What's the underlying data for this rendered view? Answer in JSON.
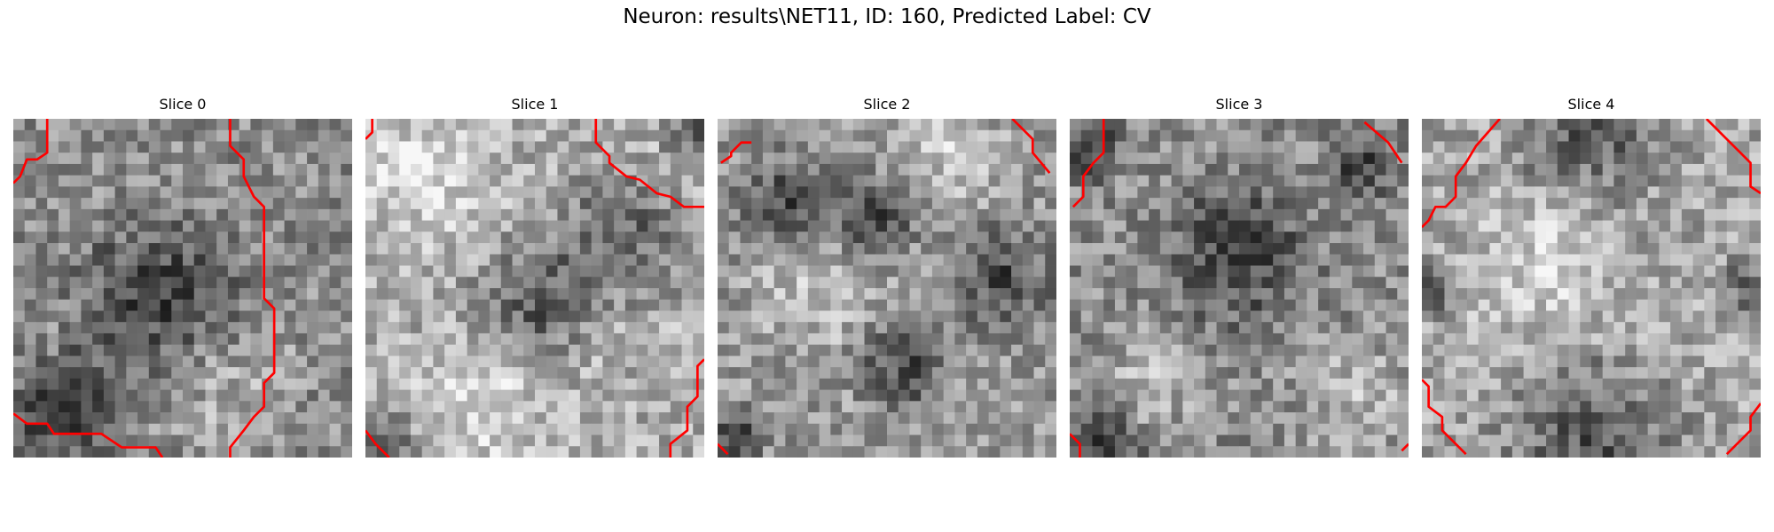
{
  "figure": {
    "title": "Neuron: results\\NET11, ID: 160, Predicted Label: CV"
  },
  "colors": {
    "background": "#ffffff",
    "contour": "#ff0000",
    "text": "#000000"
  },
  "panels": [
    {
      "title": "Slice 0",
      "image": "grayscale-em-patch",
      "overlay": "red-contour-lines",
      "base": 0.55,
      "dark": [
        [
          0.45,
          0.55,
          0.35
        ],
        [
          0.15,
          0.88,
          0.25
        ]
      ],
      "bright": [
        [
          0.6,
          0.75,
          0.3
        ]
      ],
      "contours": [
        [
          [
            0.1,
            0
          ],
          [
            0.1,
            0.1
          ],
          [
            0.07,
            0.12
          ],
          [
            0.04,
            0.12
          ],
          [
            0.02,
            0.17
          ],
          [
            0,
            0.19
          ]
        ],
        [
          [
            0.64,
            0
          ],
          [
            0.64,
            0.08
          ],
          [
            0.68,
            0.12
          ],
          [
            0.68,
            0.17
          ],
          [
            0.71,
            0.23
          ],
          [
            0.74,
            0.26
          ],
          [
            0.74,
            0.5
          ],
          [
            0.74,
            0.53
          ],
          [
            0.77,
            0.56
          ],
          [
            0.77,
            0.68
          ],
          [
            0.77,
            0.75
          ],
          [
            0.74,
            0.78
          ],
          [
            0.74,
            0.85
          ],
          [
            0.71,
            0.88
          ],
          [
            0.68,
            0.92
          ],
          [
            0.64,
            0.97
          ],
          [
            0.64,
            1
          ]
        ],
        [
          [
            0,
            0.87
          ],
          [
            0.04,
            0.9
          ],
          [
            0.1,
            0.9
          ],
          [
            0.12,
            0.93
          ],
          [
            0.26,
            0.93
          ],
          [
            0.32,
            0.97
          ],
          [
            0.42,
            0.97
          ],
          [
            0.44,
            1
          ]
        ]
      ]
    },
    {
      "title": "Slice 1",
      "image": "grayscale-em-patch",
      "overlay": "red-contour-lines",
      "base": 0.68,
      "dark": [
        [
          0.75,
          0.35,
          0.28
        ],
        [
          0.5,
          0.55,
          0.25
        ],
        [
          0.05,
          0.97,
          0.15
        ],
        [
          0.97,
          0.05,
          0.12
        ]
      ],
      "bright": [
        [
          0.15,
          0.15,
          0.3
        ],
        [
          0.35,
          0.85,
          0.25
        ]
      ],
      "contours": [
        [
          [
            0.68,
            0
          ],
          [
            0.68,
            0.07
          ],
          [
            0.72,
            0.11
          ],
          [
            0.72,
            0.13
          ],
          [
            0.77,
            0.17
          ],
          [
            0.81,
            0.18
          ],
          [
            0.86,
            0.22
          ],
          [
            0.9,
            0.23
          ],
          [
            0.94,
            0.26
          ],
          [
            0.97,
            0.26
          ],
          [
            1,
            0.26
          ]
        ],
        [
          [
            0.02,
            0
          ],
          [
            0.02,
            0.04
          ],
          [
            0,
            0.06
          ]
        ],
        [
          [
            1,
            0.71
          ],
          [
            0.98,
            0.73
          ],
          [
            0.98,
            0.82
          ],
          [
            0.95,
            0.85
          ],
          [
            0.95,
            0.92
          ],
          [
            0.9,
            0.96
          ],
          [
            0.9,
            1
          ]
        ],
        [
          [
            0,
            0.92
          ],
          [
            0.03,
            0.96
          ],
          [
            0.07,
            1
          ]
        ]
      ]
    },
    {
      "title": "Slice 2",
      "image": "grayscale-em-patch",
      "overlay": "red-contour-lines",
      "base": 0.6,
      "dark": [
        [
          0.2,
          0.25,
          0.2
        ],
        [
          0.85,
          0.48,
          0.22
        ],
        [
          0.55,
          0.72,
          0.2
        ],
        [
          0.45,
          0.3,
          0.18
        ],
        [
          0.05,
          0.93,
          0.12
        ]
      ],
      "bright": [
        [
          0.3,
          0.5,
          0.25
        ],
        [
          0.7,
          0.1,
          0.2
        ]
      ],
      "contours": [
        [
          [
            0.87,
            0
          ],
          [
            0.93,
            0.06
          ],
          [
            0.93,
            0.1
          ],
          [
            0.98,
            0.16
          ]
        ],
        [
          [
            0.1,
            0.07
          ],
          [
            0.07,
            0.07
          ],
          [
            0.04,
            0.1
          ],
          [
            0.04,
            0.11
          ],
          [
            0.01,
            0.13
          ]
        ],
        [
          [
            0,
            0.96
          ],
          [
            0.03,
            0.99
          ]
        ]
      ]
    },
    {
      "title": "Slice 3",
      "image": "grayscale-em-patch",
      "overlay": "red-contour-lines",
      "base": 0.55,
      "dark": [
        [
          0.5,
          0.4,
          0.3
        ],
        [
          0.05,
          0.08,
          0.15
        ],
        [
          0.1,
          0.95,
          0.15
        ],
        [
          0.85,
          0.15,
          0.15
        ]
      ],
      "bright": [
        [
          0.85,
          0.82,
          0.25
        ],
        [
          0.25,
          0.78,
          0.2
        ]
      ],
      "contours": [
        [
          [
            0.1,
            0
          ],
          [
            0.1,
            0.1
          ],
          [
            0.07,
            0.13
          ],
          [
            0.04,
            0.17
          ],
          [
            0.04,
            0.23
          ],
          [
            0.01,
            0.26
          ]
        ],
        [
          [
            0.87,
            0.01
          ],
          [
            0.94,
            0.07
          ],
          [
            0.98,
            0.13
          ]
        ],
        [
          [
            0,
            0.93
          ],
          [
            0.03,
            0.96
          ],
          [
            0.03,
            1
          ]
        ],
        [
          [
            1,
            0.96
          ],
          [
            0.98,
            0.98
          ]
        ]
      ]
    },
    {
      "title": "Slice 4",
      "image": "grayscale-em-patch",
      "overlay": "red-contour-lines",
      "base": 0.65,
      "dark": [
        [
          0.5,
          0.97,
          0.35
        ],
        [
          0.5,
          0.02,
          0.3
        ],
        [
          0.03,
          0.5,
          0.12
        ],
        [
          0.97,
          0.5,
          0.12
        ]
      ],
      "bright": [
        [
          0.35,
          0.45,
          0.3
        ]
      ],
      "contours": [
        [
          [
            0.23,
            0
          ],
          [
            0.16,
            0.08
          ],
          [
            0.13,
            0.13
          ],
          [
            0.1,
            0.17
          ],
          [
            0.1,
            0.23
          ],
          [
            0.07,
            0.26
          ],
          [
            0.04,
            0.26
          ],
          [
            0.02,
            0.3
          ],
          [
            0,
            0.32
          ]
        ],
        [
          [
            0.84,
            0
          ],
          [
            0.9,
            0.06
          ],
          [
            0.94,
            0.1
          ],
          [
            0.97,
            0.13
          ],
          [
            0.97,
            0.2
          ],
          [
            1,
            0.22
          ]
        ],
        [
          [
            0,
            0.77
          ],
          [
            0.02,
            0.79
          ],
          [
            0.02,
            0.85
          ],
          [
            0.06,
            0.88
          ],
          [
            0.06,
            0.92
          ],
          [
            0.1,
            0.96
          ],
          [
            0.13,
            0.99
          ]
        ],
        [
          [
            1,
            0.84
          ],
          [
            0.97,
            0.88
          ],
          [
            0.97,
            0.92
          ],
          [
            0.93,
            0.96
          ],
          [
            0.9,
            0.99
          ]
        ]
      ]
    }
  ]
}
